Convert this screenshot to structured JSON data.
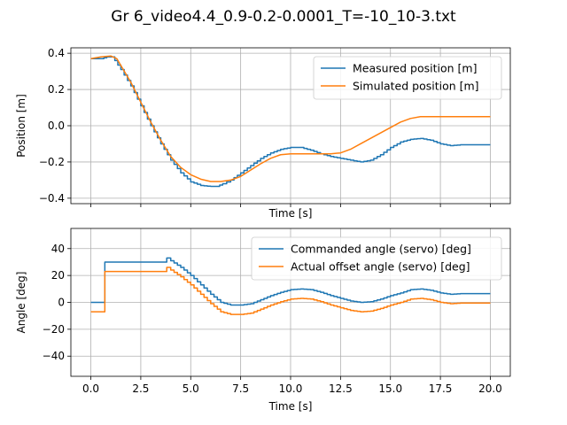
{
  "figure": {
    "title": "Gr 6_video4.4_0.9-0.2-0.0001_T=-10_10-3.txt"
  },
  "chart_data": [
    {
      "type": "line",
      "xlabel": "Time [s]",
      "ylabel": "Position [m]",
      "xlim": [
        -1.0,
        21.0
      ],
      "ylim": [
        -0.43,
        0.43
      ],
      "xticks": [
        0.0,
        2.5,
        5.0,
        7.5,
        10.0,
        12.5,
        15.0,
        17.5,
        20.0
      ],
      "yticks": [
        -0.4,
        -0.2,
        0.0,
        0.2,
        0.4
      ],
      "ytick_labels": [
        "−0.4",
        "−0.2",
        "0.0",
        "0.2",
        "0.4"
      ],
      "show_xtick_labels": false,
      "grid": true,
      "legend_position": "top-right",
      "series": [
        {
          "name": "Measured position [m]",
          "color": "#1f77b4",
          "step": true,
          "x": [
            0.0,
            0.5,
            0.8,
            1.0,
            1.2,
            1.5,
            2.0,
            2.5,
            3.0,
            3.5,
            4.0,
            4.5,
            5.0,
            5.5,
            6.0,
            6.3,
            6.6,
            7.0,
            7.5,
            8.0,
            8.5,
            9.0,
            9.5,
            10.0,
            10.5,
            11.0,
            11.5,
            12.0,
            12.5,
            13.0,
            13.5,
            14.0,
            14.5,
            15.0,
            15.5,
            16.0,
            16.5,
            17.0,
            17.5,
            18.0,
            18.5,
            19.0,
            19.5,
            20.0
          ],
          "y": [
            0.37,
            0.37,
            0.38,
            0.38,
            0.36,
            0.31,
            0.22,
            0.11,
            0.0,
            -0.1,
            -0.19,
            -0.26,
            -0.31,
            -0.33,
            -0.335,
            -0.335,
            -0.32,
            -0.3,
            -0.26,
            -0.22,
            -0.18,
            -0.15,
            -0.13,
            -0.12,
            -0.12,
            -0.135,
            -0.155,
            -0.17,
            -0.18,
            -0.19,
            -0.2,
            -0.19,
            -0.16,
            -0.12,
            -0.09,
            -0.075,
            -0.07,
            -0.08,
            -0.1,
            -0.11,
            -0.105,
            -0.105,
            -0.105,
            -0.105
          ]
        },
        {
          "name": "Simulated position [m]",
          "color": "#ff7f0e",
          "step": false,
          "x": [
            0.0,
            0.5,
            1.0,
            1.3,
            2.0,
            2.5,
            3.0,
            3.5,
            4.0,
            4.5,
            5.0,
            5.5,
            6.0,
            6.5,
            7.0,
            7.5,
            8.0,
            8.5,
            9.0,
            9.5,
            10.0,
            11.0,
            12.0,
            12.5,
            13.0,
            13.5,
            14.0,
            14.5,
            15.0,
            15.5,
            16.0,
            16.5,
            17.0,
            18.0,
            19.0,
            20.0
          ],
          "y": [
            0.37,
            0.38,
            0.385,
            0.37,
            0.24,
            0.13,
            0.02,
            -0.08,
            -0.17,
            -0.23,
            -0.27,
            -0.295,
            -0.308,
            -0.308,
            -0.3,
            -0.28,
            -0.245,
            -0.21,
            -0.18,
            -0.16,
            -0.155,
            -0.155,
            -0.155,
            -0.15,
            -0.13,
            -0.1,
            -0.07,
            -0.04,
            -0.01,
            0.02,
            0.04,
            0.05,
            0.05,
            0.05,
            0.05,
            0.05
          ]
        }
      ]
    },
    {
      "type": "line",
      "xlabel": "Time [s]",
      "ylabel": "Angle [deg]",
      "xlim": [
        -1.0,
        21.0
      ],
      "ylim": [
        -55,
        55
      ],
      "xticks": [
        0.0,
        2.5,
        5.0,
        7.5,
        10.0,
        12.5,
        15.0,
        17.5,
        20.0
      ],
      "xtick_labels": [
        "0.0",
        "2.5",
        "5.0",
        "7.5",
        "10.0",
        "12.5",
        "15.0",
        "17.5",
        "20.0"
      ],
      "yticks": [
        -40,
        -20,
        0,
        20,
        40
      ],
      "ytick_labels": [
        "−40",
        "−20",
        "0",
        "20",
        "40"
      ],
      "show_xtick_labels": true,
      "grid": true,
      "legend_position": "top-right",
      "series": [
        {
          "name": "Commanded angle (servo) [deg]",
          "color": "#1f77b4",
          "step": true,
          "x": [
            0.0,
            0.6,
            0.7,
            1.0,
            2.0,
            3.0,
            3.7,
            3.8,
            4.0,
            4.5,
            5.0,
            5.5,
            6.0,
            6.5,
            7.0,
            7.5,
            8.0,
            8.5,
            9.0,
            9.5,
            10.0,
            10.5,
            11.0,
            11.5,
            12.0,
            12.5,
            13.0,
            13.5,
            14.0,
            14.5,
            15.0,
            15.5,
            16.0,
            16.5,
            17.0,
            17.5,
            18.0,
            18.5,
            19.0,
            19.5,
            20.0
          ],
          "y": [
            0,
            0,
            30,
            30,
            30,
            30,
            30,
            33,
            31,
            26,
            20,
            13,
            6,
            0,
            -2,
            -2,
            -1,
            2,
            5,
            7.5,
            9.5,
            10,
            9.5,
            7.5,
            5,
            3,
            1,
            0,
            0.5,
            2.5,
            5,
            7,
            9.5,
            10,
            9,
            7,
            6,
            6.5,
            6.5,
            6.5,
            6.5
          ]
        },
        {
          "name": "Actual offset angle (servo) [deg]",
          "color": "#ff7f0e",
          "step": true,
          "x": [
            0.0,
            0.6,
            0.7,
            1.0,
            2.0,
            3.0,
            3.7,
            3.8,
            4.0,
            4.5,
            5.0,
            5.5,
            6.0,
            6.5,
            7.0,
            7.5,
            8.0,
            8.5,
            9.0,
            9.5,
            10.0,
            10.5,
            11.0,
            11.5,
            12.0,
            12.5,
            13.0,
            13.5,
            14.0,
            14.5,
            15.0,
            15.5,
            16.0,
            16.5,
            17.0,
            17.5,
            18.0,
            18.5,
            19.0,
            19.5,
            20.0
          ],
          "y": [
            -7,
            -7,
            23,
            23,
            23,
            23,
            23,
            26,
            24,
            19,
            13,
            6,
            -1,
            -7,
            -9,
            -9,
            -8,
            -5,
            -2,
            0.5,
            2.5,
            3,
            2.5,
            0.5,
            -2,
            -4,
            -6,
            -7,
            -6.5,
            -4.5,
            -2,
            0,
            2.5,
            3,
            2,
            0,
            -1,
            -0.5,
            -0.5,
            -0.5,
            -0.5
          ]
        }
      ]
    }
  ]
}
